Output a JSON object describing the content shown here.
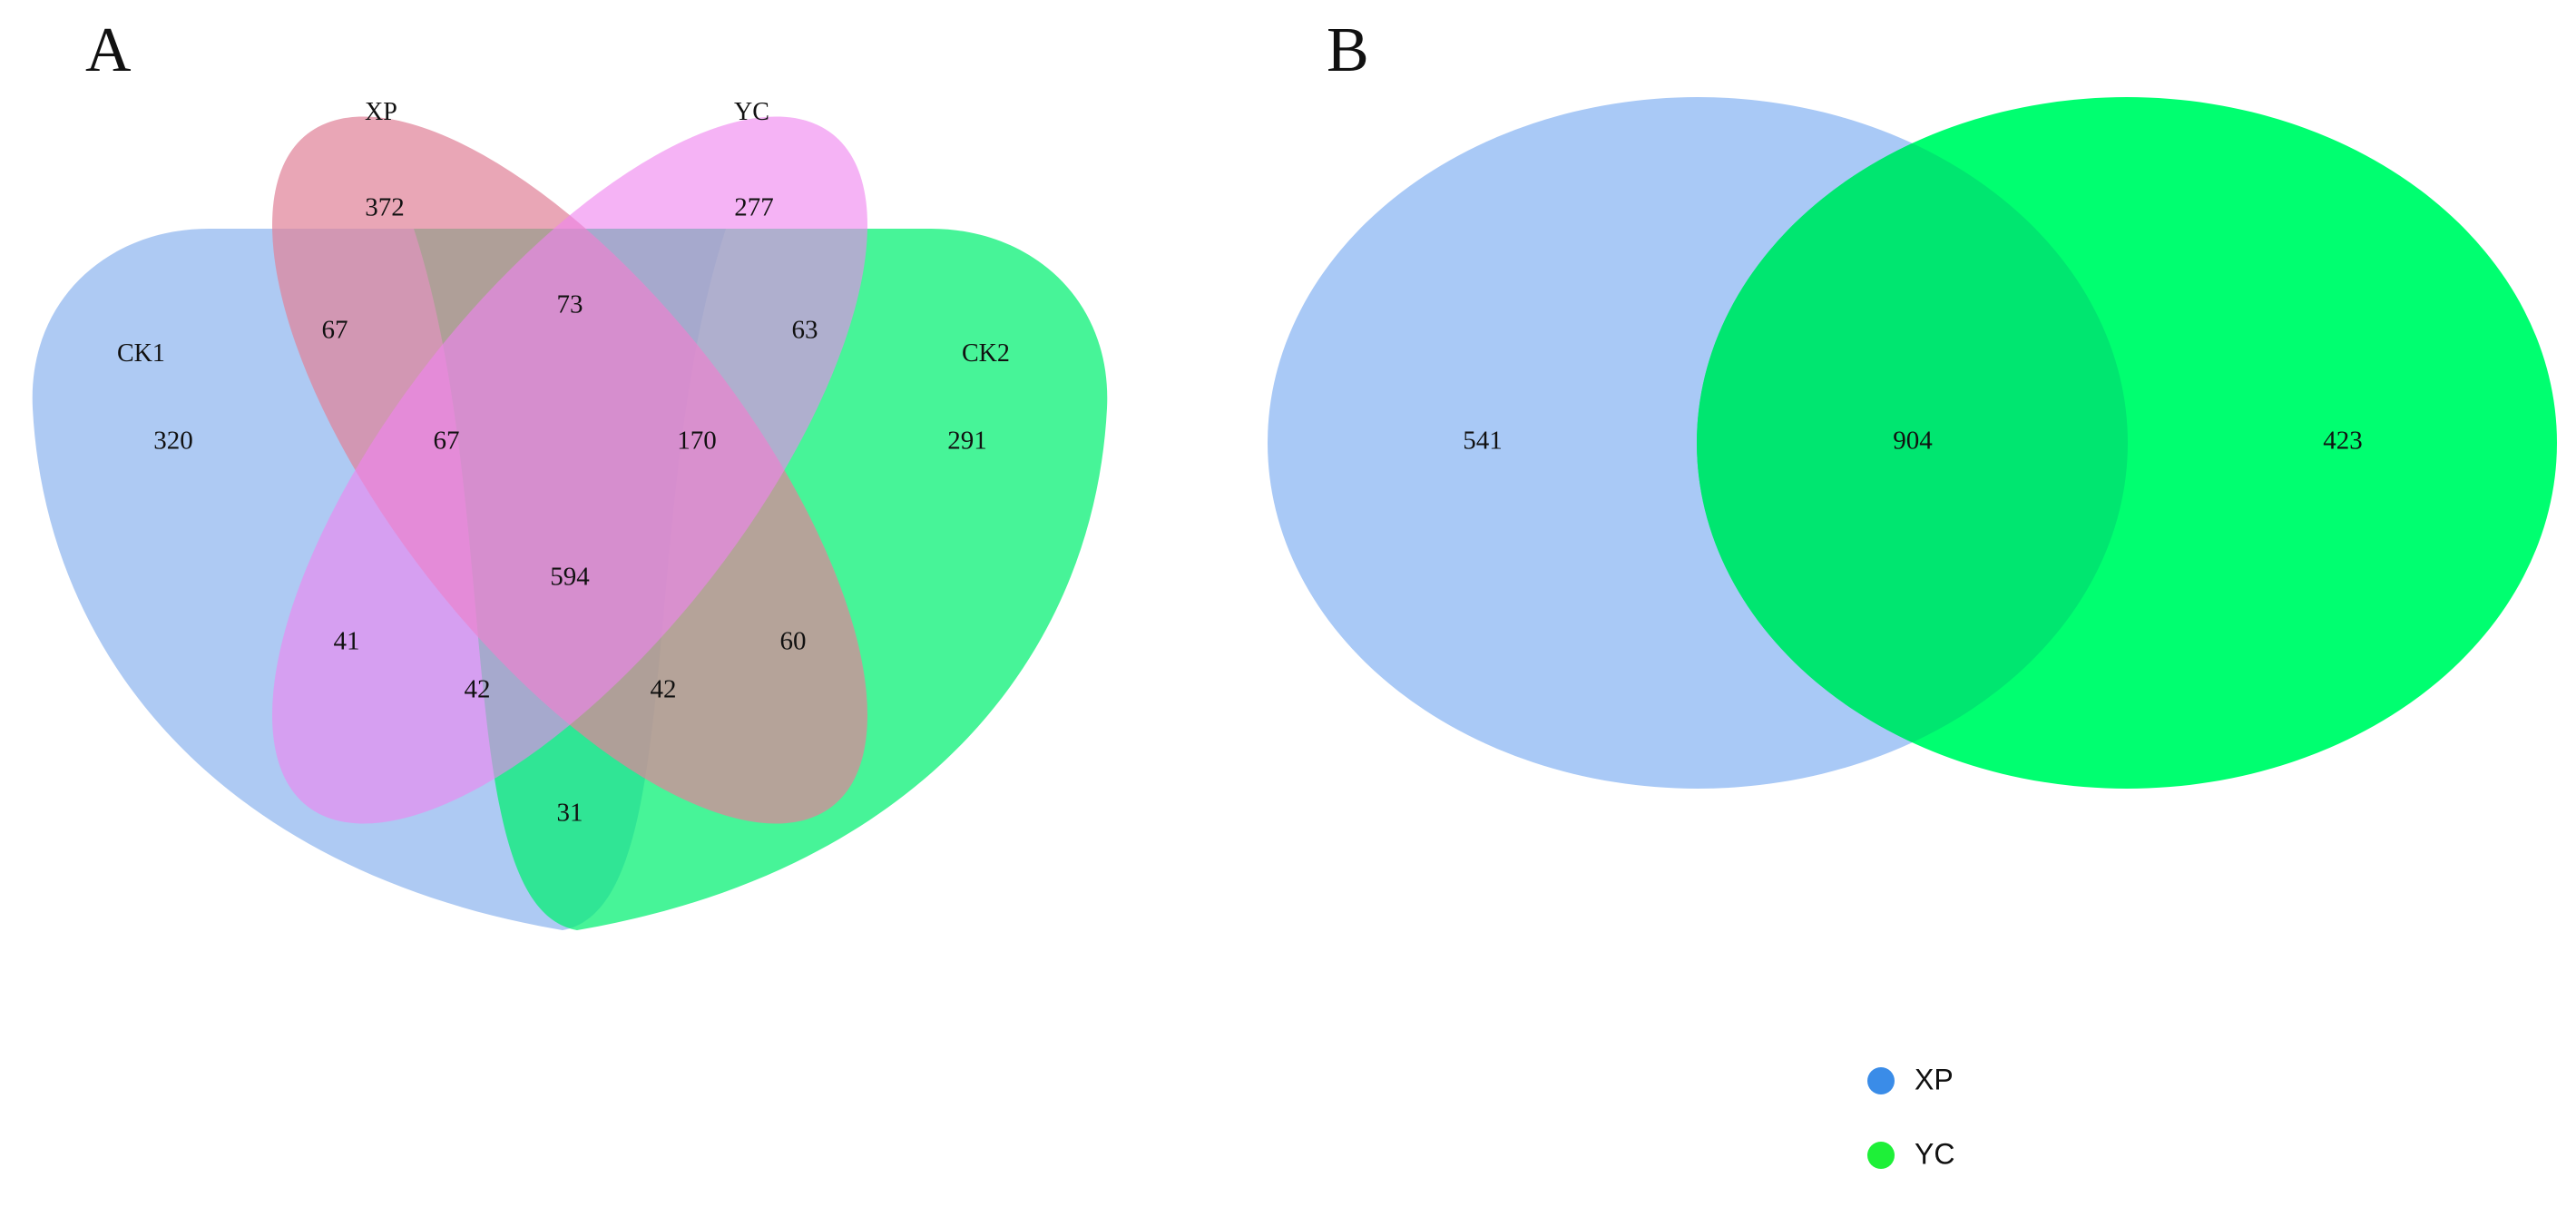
{
  "panels": {
    "a": {
      "letter": "A",
      "sets": {
        "ck1": {
          "label": "CK1",
          "color": "#8fb6ef"
        },
        "xp": {
          "label": "XP",
          "color": "#e0849a"
        },
        "yc": {
          "label": "YC",
          "color": "#ef85ef"
        },
        "ck2": {
          "label": "CK2",
          "color": "#00f070"
        }
      },
      "regions": {
        "xp_only": "372",
        "yc_only": "277",
        "ck1_only": "320",
        "ck2_only": "291",
        "ck1_xp": "67",
        "xp_yc": "73",
        "yc_ck2": "63",
        "ck1_xp_yc": "67",
        "xp_yc_ck2": "170",
        "all_four": "594",
        "ck1_yc": "41",
        "xp_ck2": "60",
        "ck1_yc_ck2": "42",
        "ck1_xp_ck2": "42",
        "ck1_ck2": "31"
      }
    },
    "b": {
      "letter": "B",
      "regions": {
        "xp_only": "541",
        "shared": "904",
        "yc_only": "423"
      },
      "legend": [
        {
          "label": "XP",
          "color": "#3a8ce8"
        },
        {
          "label": "YC",
          "color": "#1ef038"
        }
      ]
    }
  },
  "colors": {
    "b_xp": "#a9c9f6",
    "b_yc": "#00ff70",
    "b_overlap": "#00e670"
  }
}
